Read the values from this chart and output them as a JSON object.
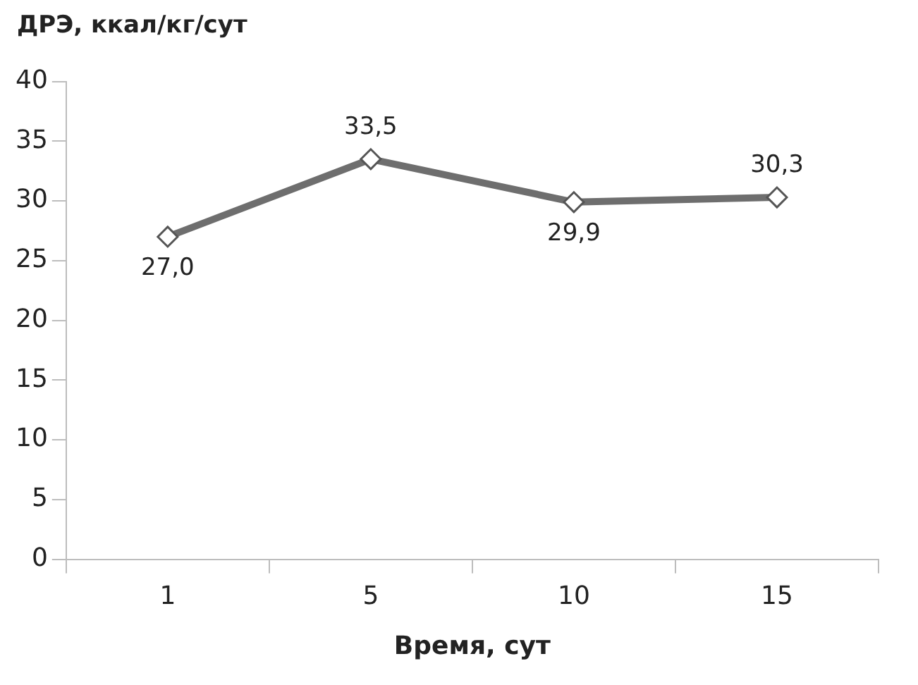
{
  "chart_data": {
    "type": "line",
    "ylabel": "ДРЭ, ккал/кг/сут",
    "xlabel": "Время, сут",
    "categories": [
      "1",
      "5",
      "10",
      "15"
    ],
    "series": [
      {
        "color": "#6e6e6e",
        "values": [
          27.0,
          33.5,
          29.9,
          30.3
        ],
        "value_labels": [
          "27,0",
          "33,5",
          "29,9",
          "30,3"
        ]
      }
    ],
    "ylim": [
      0,
      40
    ],
    "yticks": [
      0,
      5,
      10,
      15,
      20,
      25,
      30,
      35,
      40
    ],
    "marker": "diamond",
    "line_style": "solid",
    "legend": false
  }
}
